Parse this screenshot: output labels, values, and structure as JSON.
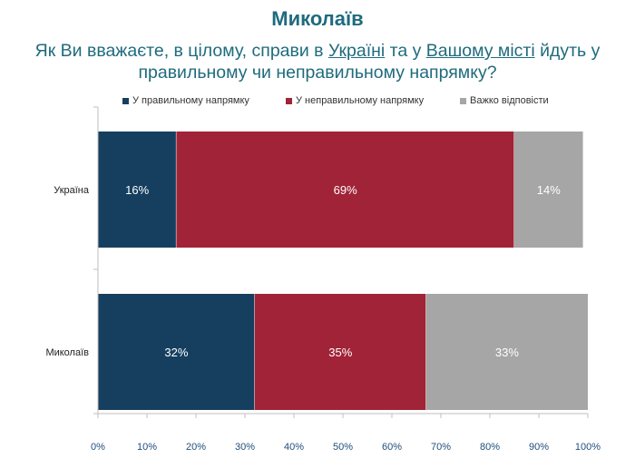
{
  "title": "Миколаїв",
  "question": {
    "part1": "Як Ви вважаєте, в цілому, справи в ",
    "u1": "Україні",
    "part2": " та у ",
    "u2": "Вашому місті",
    "part3": " йдуть у правильному чи неправильному напрямку?"
  },
  "chart_data": {
    "type": "bar",
    "orientation": "horizontal",
    "stacked": true,
    "categories": [
      "Україна",
      "Миколаїв"
    ],
    "series": [
      {
        "name": "У правильному напрямку",
        "values": [
          16,
          32
        ],
        "labels": [
          "16%",
          "32%"
        ],
        "color": "#163f5f"
      },
      {
        "name": "У неправильному напрямку",
        "values": [
          69,
          35
        ],
        "labels": [
          "69%",
          "35%"
        ],
        "color": "#a12337"
      },
      {
        "name": "Важко відповісти",
        "values": [
          14,
          33
        ],
        "labels": [
          "14%",
          "33%"
        ],
        "color": "#a6a6a6"
      }
    ],
    "xlim": [
      0,
      100
    ],
    "xticks": [
      "0%",
      "10%",
      "20%",
      "30%",
      "40%",
      "50%",
      "60%",
      "70%",
      "80%",
      "90%",
      "100%"
    ],
    "legend_position": "top",
    "grid": false
  }
}
